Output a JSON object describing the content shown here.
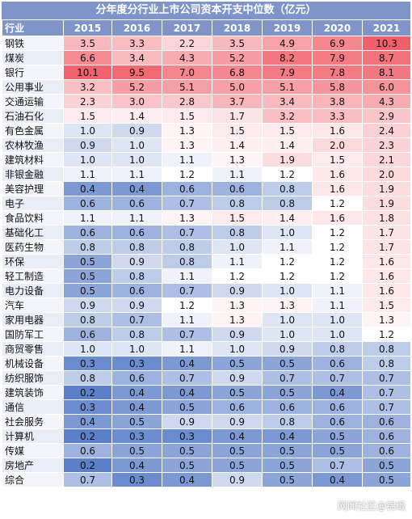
{
  "chart_data": {
    "type": "heatmap",
    "title": "分年度分行业上市公司资本开支中位数（亿元）",
    "corner_label": "行业",
    "columns": [
      "2015",
      "2016",
      "2017",
      "2018",
      "2019",
      "2020",
      "2021"
    ],
    "rows": [
      {
        "name": "钢铁",
        "values": [
          "3.5",
          "3.3",
          "2.2",
          "3.5",
          "4.9",
          "6.9",
          "10.3"
        ]
      },
      {
        "name": "煤炭",
        "values": [
          "6.6",
          "3.4",
          "4.3",
          "5.2",
          "8.2",
          "7.9",
          "8.7"
        ]
      },
      {
        "name": "银行",
        "values": [
          "10.1",
          "9.5",
          "7.0",
          "6.8",
          "7.9",
          "7.8",
          "8.1"
        ]
      },
      {
        "name": "公用事业",
        "values": [
          "3.2",
          "5.2",
          "5.1",
          "5.0",
          "5.1",
          "5.8",
          "6.0"
        ]
      },
      {
        "name": "交通运输",
        "values": [
          "2.3",
          "3.0",
          "2.8",
          "3.7",
          "3.4",
          "3.8",
          "4.3"
        ]
      },
      {
        "name": "石油石化",
        "values": [
          "1.5",
          "1.4",
          "1.5",
          "1.7",
          "3.2",
          "3.3",
          "2.9"
        ]
      },
      {
        "name": "有色金属",
        "values": [
          "1.0",
          "0.9",
          "1.3",
          "1.5",
          "1.5",
          "1.6",
          "2.4"
        ]
      },
      {
        "name": "农林牧渔",
        "values": [
          "0.9",
          "1.0",
          "1.3",
          "1.4",
          "1.4",
          "2.0",
          "2.3"
        ]
      },
      {
        "name": "建筑材料",
        "values": [
          "1.0",
          "1.0",
          "1.1",
          "1.3",
          "1.9",
          "1.5",
          "2.1"
        ]
      },
      {
        "name": "非银金融",
        "values": [
          "1.1",
          "1.1",
          "1.2",
          "1.1",
          "1.2",
          "1.6",
          "2.0"
        ]
      },
      {
        "name": "美容护理",
        "values": [
          "0.4",
          "0.4",
          "0.6",
          "0.6",
          "0.8",
          "1.6",
          "1.9"
        ]
      },
      {
        "name": "电子",
        "values": [
          "0.6",
          "0.6",
          "0.7",
          "0.8",
          "0.8",
          "1.2",
          "1.9"
        ]
      },
      {
        "name": "食品饮料",
        "values": [
          "1.1",
          "1.1",
          "1.3",
          "1.5",
          "1.4",
          "1.6",
          "1.8"
        ]
      },
      {
        "name": "基础化工",
        "values": [
          "0.6",
          "0.6",
          "0.7",
          "0.8",
          "1.0",
          "1.2",
          "1.7"
        ]
      },
      {
        "name": "医药生物",
        "values": [
          "0.8",
          "0.8",
          "0.8",
          "1.0",
          "1.1",
          "1.2",
          "1.7"
        ]
      },
      {
        "name": "环保",
        "values": [
          "0.5",
          "0.9",
          "0.8",
          "1.1",
          "1.2",
          "1.2",
          "1.6"
        ]
      },
      {
        "name": "轻工制造",
        "values": [
          "0.5",
          "0.8",
          "1.1",
          "1.2",
          "1.2",
          "1.2",
          "1.6"
        ]
      },
      {
        "name": "电力设备",
        "values": [
          "0.5",
          "0.6",
          "0.7",
          "0.9",
          "1.0",
          "1.1",
          "1.6"
        ]
      },
      {
        "name": "汽车",
        "values": [
          "0.9",
          "0.9",
          "1.2",
          "1.3",
          "1.3",
          "1.1",
          "1.5"
        ]
      },
      {
        "name": "家用电器",
        "values": [
          "0.8",
          "0.7",
          "1.1",
          "1.3",
          "1.0",
          "1.0",
          "1.3"
        ]
      },
      {
        "name": "国防军工",
        "values": [
          "0.6",
          "0.8",
          "0.7",
          "0.9",
          "1.0",
          "1.0",
          "1.2"
        ]
      },
      {
        "name": "商贸零售",
        "values": [
          "1.0",
          "1.0",
          "1.1",
          "1.0",
          "0.9",
          "0.8",
          "0.8"
        ]
      },
      {
        "name": "机械设备",
        "values": [
          "0.3",
          "0.3",
          "0.4",
          "0.5",
          "0.5",
          "0.6",
          "0.8"
        ]
      },
      {
        "name": "纺织服饰",
        "values": [
          "0.8",
          "0.6",
          "0.7",
          "0.9",
          "0.7",
          "0.7",
          "0.7"
        ]
      },
      {
        "name": "建筑装饰",
        "values": [
          "0.2",
          "0.4",
          "0.4",
          "0.5",
          "0.5",
          "0.4",
          "0.7"
        ]
      },
      {
        "name": "通信",
        "values": [
          "0.3",
          "0.4",
          "0.5",
          "0.6",
          "0.6",
          "0.6",
          "0.7"
        ]
      },
      {
        "name": "社会服务",
        "values": [
          "0.4",
          "0.5",
          "0.9",
          "0.9",
          "0.8",
          "0.6",
          "0.6"
        ]
      },
      {
        "name": "计算机",
        "values": [
          "0.2",
          "0.3",
          "0.3",
          "0.4",
          "0.4",
          "0.5",
          "0.6"
        ]
      },
      {
        "name": "传媒",
        "values": [
          "0.6",
          "0.5",
          "0.5",
          "0.5",
          "0.5",
          "0.5",
          "0.6"
        ]
      },
      {
        "name": "房地产",
        "values": [
          "0.2",
          "0.4",
          "0.5",
          "0.5",
          "0.5",
          "0.7",
          "0.5"
        ]
      },
      {
        "name": "综合",
        "values": [
          "0.7",
          "0.3",
          "0.4",
          "0.9",
          "0.5",
          "0.4",
          "0.5"
        ]
      }
    ],
    "colors": {
      "low": "#5b7fc9",
      "mid": "#ffffff",
      "high": "#f0606a",
      "header": "#7f95c9"
    }
  },
  "watermark": "网闻社区@锦缎"
}
